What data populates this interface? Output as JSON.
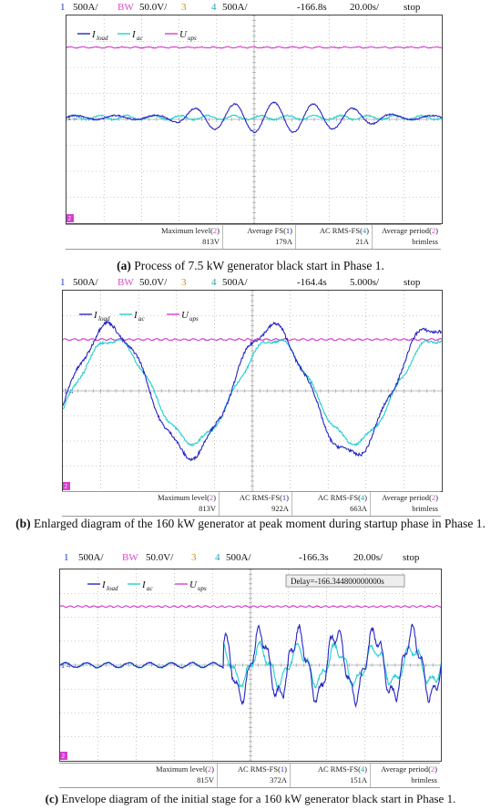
{
  "colors": {
    "ch1": "#2626c4",
    "ch2": "#d63fd0",
    "ch3": "#d18a1a",
    "ch4": "#22cfcf",
    "grid": "#9a9a9a"
  },
  "panels": [
    {
      "header": {
        "ch1_num": "1",
        "ch1_scale": "500A/",
        "bw_label": "BW",
        "ch2_scale": "50.0V/",
        "ch3_num": "3",
        "ch4_num": "4",
        "ch4_scale": "500A/",
        "trigger_time": "-166.8s",
        "timebase": "20.00s/",
        "state": "stop"
      },
      "legend": [
        {
          "main": "I",
          "sub": "load"
        },
        {
          "main": "I",
          "sub": "ac"
        },
        {
          "main": "U",
          "sub": "ups"
        }
      ],
      "markers": {
        "ch1": "1",
        "ch2": "2"
      },
      "measurements": [
        {
          "label": "Maximum level",
          "ch": "2",
          "value": "813V"
        },
        {
          "label": "Average FS",
          "ch": "1",
          "value": "179A"
        },
        {
          "label": "AC RMS-FS",
          "ch": "4",
          "value": "21A"
        },
        {
          "label": "Average period",
          "ch": "2",
          "value": "brimless"
        }
      ],
      "caption": {
        "letter": "(a)",
        "text": " Process of 7.5 kW generator black start in Phase 1."
      }
    },
    {
      "header": {
        "ch1_num": "1",
        "ch1_scale": "500A/",
        "bw_label": "BW",
        "ch2_scale": "50.0V/",
        "ch3_num": "3",
        "ch4_num": "4",
        "ch4_scale": "500A/",
        "trigger_time": "-164.4s",
        "timebase": "5.000s/",
        "state": "stop"
      },
      "legend": [
        {
          "main": "I",
          "sub": "load"
        },
        {
          "main": "I",
          "sub": "ac"
        },
        {
          "main": "U",
          "sub": "ups"
        }
      ],
      "markers": {
        "ch1": "1",
        "ch2": "2"
      },
      "measurements": [
        {
          "label": "Maximum level",
          "ch": "2",
          "value": "813V"
        },
        {
          "label": "AC RMS-FS",
          "ch": "1",
          "value": "922A"
        },
        {
          "label": "AC RMS-FS",
          "ch": "4",
          "value": "663A"
        },
        {
          "label": "Average period",
          "ch": "2",
          "value": "brimless"
        }
      ],
      "caption": {
        "letter": "(b)",
        "text": " Enlarged diagram of the 160 kW generator at peak moment during startup phase in Phase 1."
      }
    },
    {
      "header": {
        "ch1_num": "1",
        "ch1_scale": "500A/",
        "bw_label": "BW",
        "ch2_scale": "50.0V/",
        "ch3_num": "3",
        "ch4_num": "4",
        "ch4_scale": "500A/",
        "trigger_time": "-166.3s",
        "timebase": "20.00s/",
        "state": "stop"
      },
      "legend": [
        {
          "main": "I",
          "sub": "load"
        },
        {
          "main": "I",
          "sub": "ac"
        },
        {
          "main": "U",
          "sub": "ups"
        }
      ],
      "delay_box": "Delay=-166.344800000000s",
      "markers": {
        "ch1": "1",
        "ch2": "2"
      },
      "measurements": [
        {
          "label": "Maximum level",
          "ch": "2",
          "value": "815V"
        },
        {
          "label": "AC RMS-FS",
          "ch": "1",
          "value": "372A"
        },
        {
          "label": "AC RMS-FS",
          "ch": "4",
          "value": "151A"
        },
        {
          "label": "Average period",
          "ch": "2",
          "value": "brimless"
        }
      ],
      "caption": {
        "letter": "(c)",
        "text": " Envelope diagram of the initial stage for a 160 kW generator black start in Phase 1."
      }
    }
  ],
  "chart_data": [
    {
      "type": "line",
      "title": "Process of 7.5 kW generator black start in Phase 1.",
      "x_divisions": 10,
      "y_divisions": 8,
      "series": [
        {
          "name": "I_load",
          "description": "small ripple, then oscillation growing to about ±0.5 div and decaying near the end"
        },
        {
          "name": "I_ac",
          "description": "small ripple about ±0.1 div around the channel 1 zero level"
        },
        {
          "name": "U_ups",
          "description": "flat at about 2.7 div above the channel 1 zero level"
        }
      ]
    },
    {
      "type": "line",
      "title": "Enlarged diagram of the 160 kW generator at peak moment during startup phase in Phase 1.",
      "x_divisions": 10,
      "y_divisions": 8,
      "series": [
        {
          "name": "I_load",
          "description": "about 2.5 periods, peaks near +2.5 div, troughs near -2.7 div"
        },
        {
          "name": "I_ac",
          "description": "same phase, peaks near +2.0 div, troughs near -2.2 div"
        },
        {
          "name": "U_ups",
          "description": "flat at about 2.1 div"
        }
      ]
    },
    {
      "type": "line",
      "title": "Envelope diagram of the initial stage for a 160 kW generator black start in Phase 1.",
      "x_divisions": 10,
      "y_divisions": 8,
      "series": [
        {
          "name": "I_load",
          "description": "small ripple until about 4.4 div, then bursts up to about ±1.4 div"
        },
        {
          "name": "I_ac",
          "description": "small ripple, then bursts up to about ±0.7 div"
        },
        {
          "name": "U_ups",
          "description": "flat at about 2.4 div"
        }
      ]
    }
  ]
}
